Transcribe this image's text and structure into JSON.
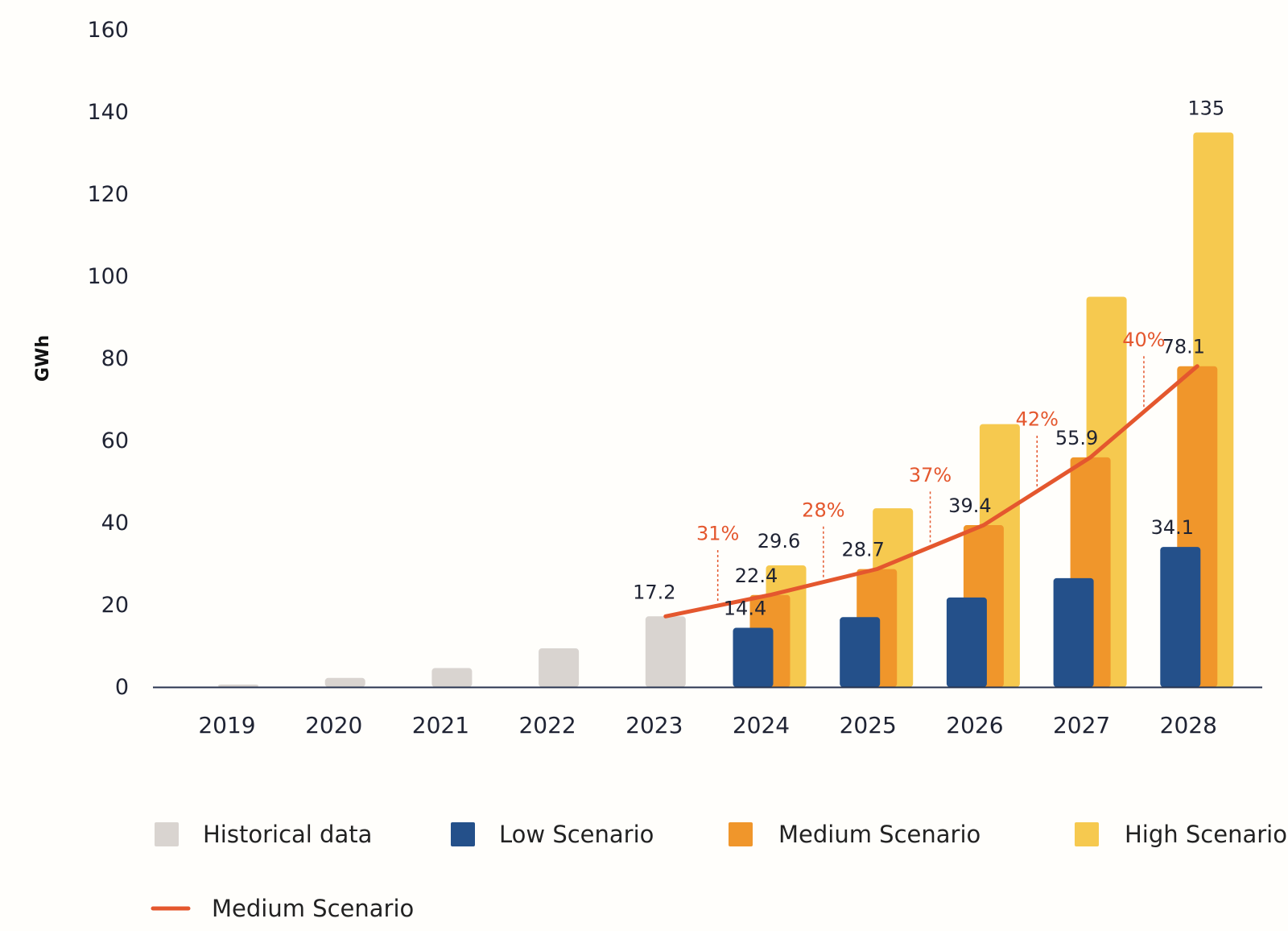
{
  "chart_data": {
    "type": "bar",
    "title": "",
    "xlabel": "",
    "ylabel": "GWh",
    "ylim": [
      0,
      160
    ],
    "yticks": [
      0,
      20,
      40,
      60,
      80,
      100,
      120,
      140,
      160
    ],
    "categories": [
      "2019",
      "2020",
      "2021",
      "2022",
      "2023",
      "2024",
      "2025",
      "2026",
      "2027",
      "2028"
    ],
    "series": [
      {
        "name": "Historical data",
        "color": "#d9d4d0",
        "values": [
          0.6,
          2.2,
          4.6,
          9.4,
          17.2,
          null,
          null,
          null,
          null,
          null
        ]
      },
      {
        "name": "Low Scenario",
        "color": "#24508a",
        "values": [
          null,
          null,
          null,
          null,
          null,
          14.4,
          17.0,
          21.8,
          26.5,
          34.1
        ]
      },
      {
        "name": "Medium Scenario",
        "color": "#f0962b",
        "values": [
          null,
          null,
          null,
          null,
          null,
          22.4,
          28.7,
          39.4,
          55.9,
          78.1
        ]
      },
      {
        "name": "High Scenario",
        "color": "#f6c94f",
        "values": [
          null,
          null,
          null,
          null,
          null,
          29.6,
          43.5,
          64.0,
          95.0,
          135
        ]
      }
    ],
    "line": {
      "name": "Medium Scenario",
      "color": "#e4572e",
      "values": [
        null,
        null,
        null,
        null,
        17.2,
        22.4,
        28.7,
        39.4,
        55.9,
        78.1
      ]
    },
    "data_labels": [
      {
        "category": "2023",
        "series": "Historical data",
        "text": "17.2"
      },
      {
        "category": "2024",
        "series": "Low Scenario",
        "text": "14.4"
      },
      {
        "category": "2024",
        "series": "Medium Scenario",
        "text": "22.4"
      },
      {
        "category": "2024",
        "series": "High Scenario",
        "text": "29.6"
      },
      {
        "category": "2025",
        "series": "Medium Scenario",
        "text": "28.7"
      },
      {
        "category": "2026",
        "series": "Medium Scenario",
        "text": "39.4"
      },
      {
        "category": "2027",
        "series": "Medium Scenario",
        "text": "55.9"
      },
      {
        "category": "2028",
        "series": "Medium Scenario",
        "text": "78.1"
      },
      {
        "category": "2028",
        "series": "Low Scenario",
        "text": "34.1"
      },
      {
        "category": "2028",
        "series": "High Scenario",
        "text": "135"
      }
    ],
    "growth_labels": [
      {
        "between": [
          "2023",
          "2024"
        ],
        "text": "31%"
      },
      {
        "between": [
          "2024",
          "2025"
        ],
        "text": "28%"
      },
      {
        "between": [
          "2025",
          "2026"
        ],
        "text": "37%"
      },
      {
        "between": [
          "2026",
          "2027"
        ],
        "text": "42%"
      },
      {
        "between": [
          "2027",
          "2028"
        ],
        "text": "40%"
      }
    ],
    "legend": [
      {
        "label": "Historical data",
        "kind": "box",
        "color": "#d9d4d0"
      },
      {
        "label": "Low Scenario",
        "kind": "box",
        "color": "#24508a"
      },
      {
        "label": "Medium Scenario",
        "kind": "box",
        "color": "#f0962b"
      },
      {
        "label": "High Scenario",
        "kind": "box",
        "color": "#f6c94f"
      },
      {
        "label": "Medium Scenario",
        "kind": "line",
        "color": "#e4572e"
      }
    ],
    "legend_position": "bottom",
    "grid": false
  }
}
